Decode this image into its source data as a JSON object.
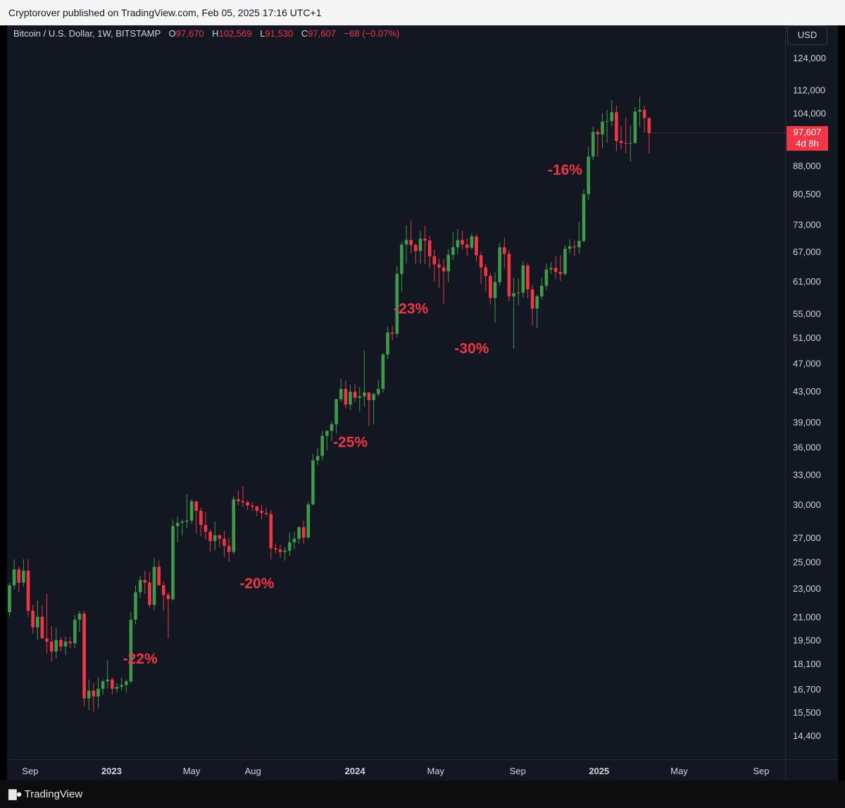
{
  "header": {
    "published": "Cryptorover published on TradingView.com, Feb 05, 2025 17:16 UTC+1"
  },
  "legend": {
    "symbol": "Bitcoin / U.S. Dollar, 1W, BITSTAMP",
    "o_label": "O",
    "o_value": "97,670",
    "h_label": "H",
    "h_value": "102,569",
    "l_label": "L",
    "l_value": "91,530",
    "c_label": "C",
    "c_value": "97,607",
    "change": "−68 (−0.07%)"
  },
  "axis": {
    "currency": "USD"
  },
  "last_price": {
    "price": "97,607",
    "countdown": "4d 8h"
  },
  "footer": {
    "brand": "TradingView",
    "logo_icon": "tradingview-logo-icon"
  },
  "colors": {
    "up": "#26a69a",
    "up_candle": "#3e9b4a",
    "down": "#f23645",
    "annotation": "#f23645",
    "background": "#131722"
  },
  "chart_data": {
    "type": "candlestick",
    "scale": "log",
    "ylim": [
      13500,
      130000
    ],
    "y_ticks": [
      124000,
      112000,
      104000,
      88000,
      80500,
      73000,
      67000,
      61000,
      55000,
      51000,
      47000,
      43000,
      39000,
      36000,
      33000,
      30000,
      27000,
      25000,
      23000,
      21000,
      19500,
      18100,
      16700,
      15500,
      14400
    ],
    "x_ticks": [
      {
        "label": "Sep",
        "bold": false,
        "date": "2022-09-01"
      },
      {
        "label": "2023",
        "bold": true,
        "date": "2023-01-01"
      },
      {
        "label": "May",
        "bold": false,
        "date": "2023-05-01"
      },
      {
        "label": "Aug",
        "bold": false,
        "date": "2023-08-01"
      },
      {
        "label": "2024",
        "bold": true,
        "date": "2024-01-01"
      },
      {
        "label": "May",
        "bold": false,
        "date": "2024-05-01"
      },
      {
        "label": "Sep",
        "bold": false,
        "date": "2024-09-01"
      },
      {
        "label": "2025",
        "bold": true,
        "date": "2025-01-01"
      },
      {
        "label": "May",
        "bold": false,
        "date": "2025-05-01"
      },
      {
        "label": "Sep",
        "bold": false,
        "date": "2025-09-01"
      }
    ],
    "interval": "1W",
    "series_start": "2022-08-01",
    "candles": [
      [
        21300,
        23400,
        21000,
        23200
      ],
      [
        23200,
        25200,
        22900,
        24400
      ],
      [
        24400,
        24600,
        22700,
        23400
      ],
      [
        23400,
        25200,
        23100,
        24300
      ],
      [
        24300,
        25200,
        21000,
        21400
      ],
      [
        21400,
        21800,
        19900,
        20300
      ],
      [
        20300,
        22100,
        19500,
        21000
      ],
      [
        21000,
        21800,
        19600,
        19600
      ],
      [
        19600,
        22600,
        18700,
        19400
      ],
      [
        19400,
        20400,
        18200,
        18800
      ],
      [
        18800,
        20300,
        18400,
        19500
      ],
      [
        19500,
        19700,
        18800,
        19100
      ],
      [
        19100,
        19700,
        18600,
        19400
      ],
      [
        19400,
        19700,
        19000,
        19300
      ],
      [
        19300,
        21100,
        19000,
        20800
      ],
      [
        20800,
        21400,
        20000,
        21200
      ],
      [
        21200,
        21400,
        15800,
        16200
      ],
      [
        16200,
        17200,
        15600,
        16600
      ],
      [
        16600,
        17000,
        15500,
        16300
      ],
      [
        16300,
        17300,
        15700,
        16700
      ],
      [
        16700,
        17200,
        16400,
        17100
      ],
      [
        17100,
        18300,
        16700,
        17200
      ],
      [
        17200,
        17300,
        16400,
        16700
      ],
      [
        16700,
        17000,
        16500,
        16800
      ],
      [
        16800,
        17300,
        16600,
        16900
      ],
      [
        16900,
        17200,
        16500,
        17100
      ],
      [
        17100,
        21300,
        17000,
        20800
      ],
      [
        20800,
        23200,
        20500,
        22700
      ],
      [
        22700,
        23900,
        22300,
        23600
      ],
      [
        23600,
        24300,
        22600,
        23400
      ],
      [
        23400,
        24200,
        21600,
        21800
      ],
      [
        21800,
        25300,
        21400,
        24600
      ],
      [
        24600,
        25100,
        23300,
        23200
      ],
      [
        23200,
        23500,
        21400,
        22500
      ],
      [
        22500,
        22700,
        19600,
        22200
      ],
      [
        22200,
        28600,
        22100,
        28000
      ],
      [
        28000,
        28900,
        26600,
        28300
      ],
      [
        28300,
        28600,
        27200,
        28400
      ],
      [
        28400,
        31000,
        27800,
        28500
      ],
      [
        28500,
        30500,
        28200,
        30300
      ],
      [
        30300,
        30000,
        27400,
        29400
      ],
      [
        29400,
        29700,
        27100,
        28100
      ],
      [
        28100,
        29300,
        26800,
        27500
      ],
      [
        27500,
        27700,
        25800,
        26700
      ],
      [
        26700,
        28400,
        25900,
        27200
      ],
      [
        27200,
        27300,
        26200,
        26900
      ],
      [
        26900,
        27600,
        25400,
        26300
      ],
      [
        26300,
        27000,
        25000,
        25800
      ],
      [
        25800,
        30800,
        25600,
        30500
      ],
      [
        30500,
        31300,
        29900,
        30300
      ],
      [
        30300,
        31800,
        29800,
        30200
      ],
      [
        30200,
        30400,
        29500,
        29900
      ],
      [
        29900,
        30200,
        29400,
        29800
      ],
      [
        29800,
        29900,
        28900,
        29400
      ],
      [
        29400,
        30000,
        28600,
        29200
      ],
      [
        29200,
        29700,
        28900,
        29100
      ],
      [
        29100,
        29500,
        25200,
        26100
      ],
      [
        26100,
        26500,
        25700,
        26000
      ],
      [
        26000,
        26400,
        25300,
        25800
      ],
      [
        25800,
        26200,
        25100,
        25900
      ],
      [
        25900,
        27400,
        25500,
        26600
      ],
      [
        26600,
        27500,
        26000,
        26900
      ],
      [
        26900,
        28000,
        26500,
        27900
      ],
      [
        27900,
        28500,
        26500,
        27000
      ],
      [
        27000,
        30300,
        26900,
        30000
      ],
      [
        30000,
        35200,
        29900,
        34500
      ],
      [
        34500,
        35900,
        34000,
        35000
      ],
      [
        35000,
        37900,
        34500,
        37300
      ],
      [
        37300,
        38000,
        35600,
        37900
      ],
      [
        37900,
        39000,
        36700,
        38700
      ],
      [
        38700,
        42000,
        37600,
        41900
      ],
      [
        41900,
        44700,
        41600,
        43300
      ],
      [
        43300,
        44500,
        40700,
        41200
      ],
      [
        41200,
        43900,
        40500,
        42900
      ],
      [
        42900,
        44000,
        41600,
        42100
      ],
      [
        42100,
        43600,
        40300,
        42300
      ],
      [
        42300,
        48900,
        40900,
        42800
      ],
      [
        42800,
        42900,
        38500,
        41800
      ],
      [
        41800,
        42800,
        38700,
        42600
      ],
      [
        42600,
        44600,
        42300,
        43300
      ],
      [
        43300,
        48500,
        42800,
        48300
      ],
      [
        48300,
        52700,
        47600,
        51800
      ],
      [
        51800,
        52900,
        50500,
        51600
      ],
      [
        51600,
        64000,
        51000,
        62400
      ],
      [
        62400,
        69200,
        59000,
        68500
      ],
      [
        68500,
        72800,
        64500,
        69500
      ],
      [
        69500,
        73900,
        66600,
        68400
      ],
      [
        68400,
        68700,
        64500,
        67100
      ],
      [
        67100,
        71600,
        64500,
        69800
      ],
      [
        69800,
        72700,
        64400,
        69400
      ],
      [
        69400,
        70400,
        63500,
        66000
      ],
      [
        66000,
        67400,
        60900,
        64300
      ],
      [
        64300,
        65500,
        59700,
        63700
      ],
      [
        63700,
        65400,
        56700,
        62900
      ],
      [
        62900,
        67500,
        60800,
        66300
      ],
      [
        66300,
        71200,
        65200,
        67900
      ],
      [
        67900,
        71900,
        66300,
        69500
      ],
      [
        69500,
        71600,
        67400,
        68500
      ],
      [
        68500,
        69900,
        66000,
        67800
      ],
      [
        67800,
        71000,
        67500,
        70300
      ],
      [
        70300,
        70800,
        64900,
        66200
      ],
      [
        66200,
        66900,
        60400,
        63700
      ],
      [
        63700,
        64400,
        59000,
        62000
      ],
      [
        62000,
        62600,
        56600,
        57800
      ],
      [
        57800,
        62700,
        53500,
        60800
      ],
      [
        60800,
        68900,
        60100,
        67900
      ],
      [
        67900,
        70000,
        63600,
        66500
      ],
      [
        66500,
        67300,
        57200,
        58100
      ],
      [
        58100,
        61700,
        49200,
        58700
      ],
      [
        58700,
        61500,
        56500,
        58800
      ],
      [
        58800,
        65000,
        57900,
        64100
      ],
      [
        64100,
        64600,
        57800,
        59400
      ],
      [
        59400,
        60300,
        53000,
        55900
      ],
      [
        55900,
        58400,
        52500,
        58100
      ],
      [
        58100,
        61600,
        57500,
        60100
      ],
      [
        60100,
        64500,
        59300,
        63300
      ],
      [
        63300,
        64800,
        62400,
        63600
      ],
      [
        63600,
        66000,
        61400,
        62800
      ],
      [
        62800,
        66200,
        61000,
        62400
      ],
      [
        62400,
        68400,
        62000,
        67600
      ],
      [
        67600,
        69600,
        66600,
        68100
      ],
      [
        68100,
        69400,
        66000,
        67900
      ],
      [
        67900,
        73600,
        66500,
        69300
      ],
      [
        69300,
        81500,
        68900,
        80400
      ],
      [
        80400,
        93400,
        78900,
        90600
      ],
      [
        90600,
        99600,
        89600,
        98000
      ],
      [
        98000,
        98800,
        90500,
        97200
      ],
      [
        97200,
        104000,
        93000,
        101200
      ],
      [
        101200,
        105000,
        94600,
        101400
      ],
      [
        101400,
        108300,
        99700,
        104300
      ],
      [
        104300,
        106500,
        92200,
        95200
      ],
      [
        95200,
        99800,
        92800,
        94600
      ],
      [
        94600,
        102700,
        91600,
        94500
      ],
      [
        94500,
        100000,
        89200,
        94600
      ],
      [
        94600,
        106000,
        94300,
        104500
      ],
      [
        104500,
        109500,
        99500,
        105100
      ],
      [
        105100,
        106400,
        97800,
        102400
      ],
      [
        102400,
        102600,
        91500,
        97600
      ]
    ],
    "annotations": [
      {
        "text": "-22%",
        "x_index": 28,
        "price": 18100
      },
      {
        "text": "-20%",
        "x_index": 53,
        "price": 23000
      },
      {
        "text": "-25%",
        "x_index": 73,
        "price": 36000
      },
      {
        "text": "-23%",
        "x_index": 86,
        "price": 55000
      },
      {
        "text": "-30%",
        "x_index": 99,
        "price": 48500
      },
      {
        "text": "-16%",
        "x_index": 119,
        "price": 85500
      }
    ],
    "last_price_line": 97607
  }
}
